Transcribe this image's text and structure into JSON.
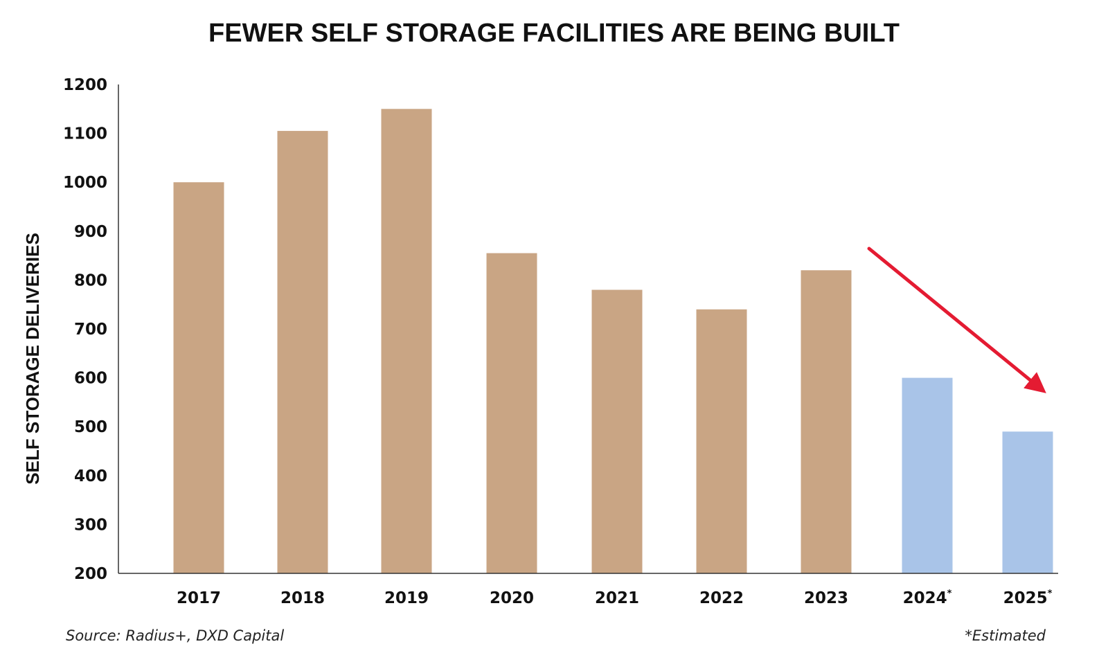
{
  "title": "FEWER SELF STORAGE FACILITIES ARE BEING BUILT",
  "source_note": "Source: Radius+, DXD Capital",
  "estimated_note": "*Estimated",
  "colors": {
    "actual": "#c9a584",
    "estimated": "#a9c4e8",
    "arrow": "#e41b32",
    "axis": "#333333",
    "text": "#111111"
  },
  "chart_data": {
    "type": "bar",
    "title": "FEWER SELF STORAGE FACILITIES ARE BEING BUILT",
    "xlabel": "",
    "ylabel": "SELF STORAGE DELIVERIES",
    "categories": [
      "2017",
      "2018",
      "2019",
      "2020",
      "2021",
      "2022",
      "2023",
      "2024",
      "2025"
    ],
    "values": [
      1000,
      1105,
      1150,
      855,
      780,
      740,
      820,
      600,
      490
    ],
    "estimated": [
      false,
      false,
      false,
      false,
      false,
      false,
      false,
      true,
      true
    ],
    "estimated_marker": "*",
    "ylim": [
      200,
      1200
    ],
    "yticks": [
      200,
      300,
      400,
      500,
      600,
      700,
      800,
      900,
      1000,
      1100,
      1200
    ],
    "grid": false,
    "legend": "none",
    "annotation": "red downward-trend arrow from 2023 toward 2025"
  }
}
